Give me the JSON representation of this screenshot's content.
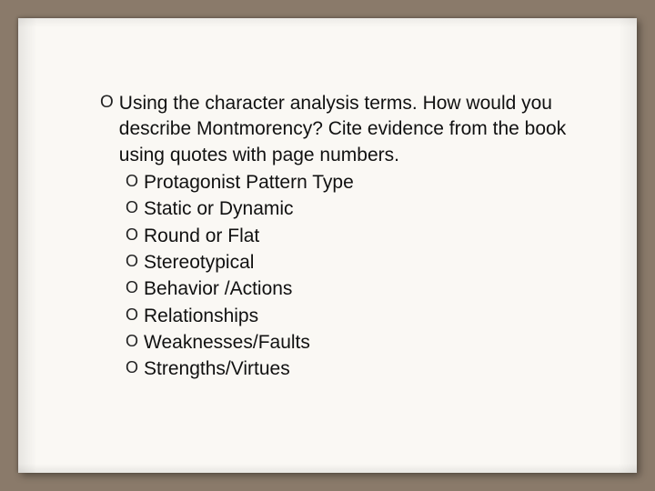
{
  "slide": {
    "background_color": "#8a7a6a",
    "paper_color": "#faf8f4",
    "text_color": "#111111",
    "bullet_glyph": "O",
    "main_fontsize": 21,
    "bullet_font": "Comic Sans MS",
    "body_font": "Arial",
    "main_item": {
      "text": "Using the character analysis terms. How would you describe Montmorency?  Cite evidence from the book using quotes with page numbers."
    },
    "sub_items": [
      {
        "text": "Protagonist Pattern Type"
      },
      {
        "text": "Static or Dynamic"
      },
      {
        "text": "Round or Flat"
      },
      {
        "text": "Stereotypical"
      },
      {
        "text": "Behavior /Actions"
      },
      {
        "text": "Relationships"
      },
      {
        "text": "Weaknesses/Faults"
      },
      {
        "text": "Strengths/Virtues"
      }
    ]
  }
}
